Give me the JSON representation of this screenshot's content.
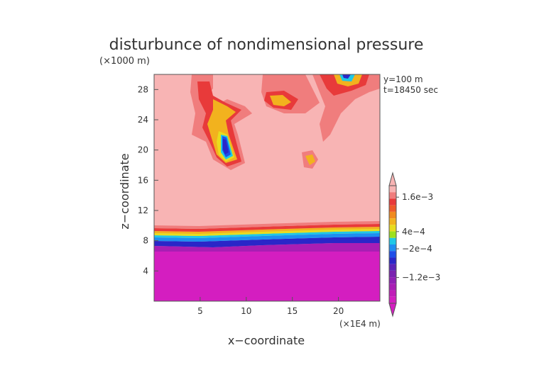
{
  "chart_data": {
    "type": "heatmap",
    "title": "disturbunce of nondimensional pressure",
    "z_unit_note": "(×1000 m)",
    "x_unit_note": "(×1E4 m)",
    "xlabel": "x−coordinate",
    "ylabel": "z−coordinate",
    "info_lines": [
      "y=100 m",
      "t=18450 sec"
    ],
    "xlim": [
      0,
      24.5
    ],
    "ylim": [
      0,
      30
    ],
    "x_ticks": [
      5,
      10,
      15,
      20
    ],
    "x_tick_labels": [
      "5",
      "10",
      "15",
      "20"
    ],
    "y_ticks": [
      4,
      8,
      12,
      16,
      20,
      24,
      28
    ],
    "y_tick_labels": [
      "4",
      "8",
      "12",
      "16",
      "20",
      "24",
      "28"
    ],
    "colorbar": {
      "labels": [
        {
          "value": 0.0016,
          "text": "1.6e−3"
        },
        {
          "value": 0.0004,
          "text": "4e−4"
        },
        {
          "value": -0.0002,
          "text": "−2e−4"
        },
        {
          "value": -0.0012,
          "text": "−1.2e−3"
        }
      ],
      "colors_top_to_bottom": [
        "#f8b4b4",
        "#f07d7d",
        "#e83a3a",
        "#ee5a2a",
        "#f08a1e",
        "#f2b21e",
        "#e8dc1e",
        "#9ee01e",
        "#1ec8e6",
        "#1e8ef0",
        "#1e4ee8",
        "#2a26c8",
        "#5a24b8",
        "#7a22b0",
        "#9020b4",
        "#a81eb4",
        "#c01eb8",
        "#d41ec0"
      ]
    },
    "features": [
      {
        "desc": "negative pressure layer",
        "z_range": [
          0,
          9.5
        ]
      },
      {
        "desc": "low-level positive region",
        "z_range": [
          9.5,
          30
        ]
      },
      {
        "desc": "plume",
        "x_range": [
          4,
          10
        ],
        "z_range": [
          17.5,
          26
        ],
        "min_center": [
          8,
          20
        ]
      },
      {
        "desc": "plume",
        "x_range": [
          12,
          18
        ],
        "z_range": [
          24,
          30
        ]
      },
      {
        "desc": "plume",
        "x_range": [
          16,
          18
        ],
        "z_range": [
          18,
          21
        ]
      },
      {
        "desc": "top band",
        "x_range": [
          4,
          24.5
        ],
        "z_range": [
          28,
          30
        ],
        "min_center": [
          21,
          29.8
        ]
      }
    ]
  }
}
